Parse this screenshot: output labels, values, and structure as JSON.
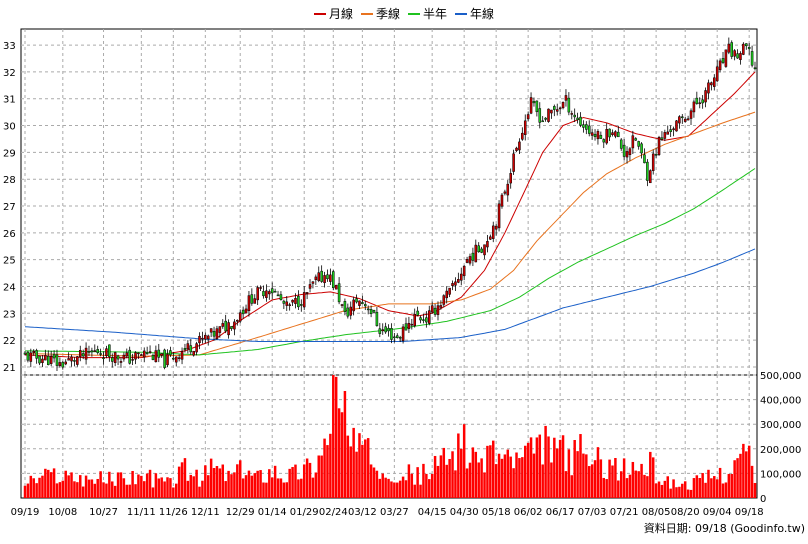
{
  "chart_data": [
    {
      "type": "candlestick",
      "panel": "price",
      "legend": [
        {
          "name": "月線",
          "color": "#cc0000"
        },
        {
          "name": "季線",
          "color": "#e8731f"
        },
        {
          "name": "半年",
          "color": "#1fc21f"
        },
        {
          "name": "年線",
          "color": "#1a5fc8"
        }
      ],
      "ylim": [
        20.7,
        33.6
      ],
      "yticks": [
        21,
        22,
        23,
        24,
        25,
        26,
        27,
        28,
        29,
        30,
        31,
        32,
        33
      ],
      "grid": true,
      "up_color": "#cc0000",
      "down_color": "#1ecb1e",
      "close_anchors": [
        [
          0,
          21.4
        ],
        [
          8,
          21.3
        ],
        [
          12,
          21.1
        ],
        [
          18,
          21.35
        ],
        [
          25,
          21.6
        ],
        [
          30,
          21.45
        ],
        [
          36,
          21.3
        ],
        [
          42,
          21.55
        ],
        [
          48,
          21.2
        ],
        [
          54,
          21.6
        ],
        [
          60,
          21.95
        ],
        [
          66,
          22.3
        ],
        [
          72,
          22.75
        ],
        [
          78,
          23.6
        ],
        [
          84,
          24.0
        ],
        [
          90,
          23.2
        ],
        [
          96,
          23.6
        ],
        [
          100,
          24.2
        ],
        [
          104,
          24.5
        ],
        [
          107,
          23.9
        ],
        [
          110,
          22.9
        ],
        [
          114,
          23.5
        ],
        [
          118,
          23.3
        ],
        [
          122,
          22.4
        ],
        [
          128,
          22.1
        ],
        [
          134,
          22.9
        ],
        [
          138,
          22.8
        ],
        [
          142,
          23.3
        ],
        [
          147,
          23.9
        ],
        [
          152,
          25.0
        ],
        [
          158,
          25.6
        ],
        [
          162,
          26.5
        ],
        [
          166,
          28.0
        ],
        [
          170,
          29.6
        ],
        [
          174,
          30.8
        ],
        [
          178,
          30.2
        ],
        [
          182,
          30.6
        ],
        [
          186,
          30.9
        ],
        [
          190,
          30.2
        ],
        [
          194,
          29.8
        ],
        [
          198,
          29.5
        ],
        [
          202,
          29.9
        ],
        [
          206,
          29.0
        ],
        [
          210,
          29.5
        ],
        [
          214,
          28.2
        ],
        [
          218,
          29.4
        ],
        [
          222,
          29.9
        ],
        [
          226,
          30.2
        ],
        [
          230,
          30.7
        ],
        [
          234,
          31.2
        ],
        [
          238,
          32.0
        ],
        [
          242,
          32.8
        ],
        [
          245,
          32.6
        ],
        [
          248,
          32.9
        ],
        [
          251,
          32.1
        ]
      ],
      "moving_averages": {
        "月線": [
          [
            0,
            21.45
          ],
          [
            20,
            21.35
          ],
          [
            40,
            21.35
          ],
          [
            55,
            21.6
          ],
          [
            65,
            22.0
          ],
          [
            75,
            22.8
          ],
          [
            85,
            23.5
          ],
          [
            95,
            23.7
          ],
          [
            105,
            23.8
          ],
          [
            115,
            23.55
          ],
          [
            125,
            23.1
          ],
          [
            135,
            22.9
          ],
          [
            140,
            23.0
          ],
          [
            150,
            23.6
          ],
          [
            158,
            24.6
          ],
          [
            165,
            26.0
          ],
          [
            172,
            27.6
          ],
          [
            178,
            29.0
          ],
          [
            185,
            30.0
          ],
          [
            192,
            30.3
          ],
          [
            200,
            30.1
          ],
          [
            210,
            29.7
          ],
          [
            220,
            29.45
          ],
          [
            228,
            29.6
          ],
          [
            236,
            30.4
          ],
          [
            244,
            31.2
          ],
          [
            251,
            32.0
          ]
        ],
        "季線": [
          [
            0,
            21.5
          ],
          [
            40,
            21.4
          ],
          [
            60,
            21.45
          ],
          [
            80,
            22.1
          ],
          [
            95,
            22.6
          ],
          [
            110,
            23.1
          ],
          [
            125,
            23.35
          ],
          [
            140,
            23.35
          ],
          [
            150,
            23.5
          ],
          [
            160,
            23.9
          ],
          [
            168,
            24.6
          ],
          [
            176,
            25.7
          ],
          [
            184,
            26.6
          ],
          [
            192,
            27.5
          ],
          [
            200,
            28.2
          ],
          [
            210,
            28.8
          ],
          [
            220,
            29.3
          ],
          [
            230,
            29.7
          ],
          [
            240,
            30.1
          ],
          [
            251,
            30.5
          ]
        ],
        "半年": [
          [
            0,
            21.6
          ],
          [
            40,
            21.55
          ],
          [
            60,
            21.45
          ],
          [
            80,
            21.65
          ],
          [
            95,
            21.95
          ],
          [
            110,
            22.2
          ],
          [
            130,
            22.45
          ],
          [
            145,
            22.7
          ],
          [
            160,
            23.1
          ],
          [
            170,
            23.6
          ],
          [
            180,
            24.3
          ],
          [
            190,
            24.9
          ],
          [
            200,
            25.4
          ],
          [
            210,
            25.9
          ],
          [
            220,
            26.35
          ],
          [
            230,
            26.9
          ],
          [
            240,
            27.6
          ],
          [
            251,
            28.4
          ]
        ],
        "年線": [
          [
            0,
            22.5
          ],
          [
            30,
            22.3
          ],
          [
            60,
            22.05
          ],
          [
            80,
            21.95
          ],
          [
            110,
            21.95
          ],
          [
            130,
            21.95
          ],
          [
            150,
            22.1
          ],
          [
            165,
            22.4
          ],
          [
            175,
            22.8
          ],
          [
            185,
            23.2
          ],
          [
            200,
            23.6
          ],
          [
            215,
            24.0
          ],
          [
            230,
            24.5
          ],
          [
            240,
            24.9
          ],
          [
            251,
            25.4
          ]
        ]
      }
    },
    {
      "type": "bar",
      "panel": "volume",
      "ylim": [
        0,
        500000
      ],
      "yticks": [
        0,
        100000,
        200000,
        300000,
        400000,
        500000
      ],
      "ytick_labels": [
        "0",
        "100,000",
        "200,000",
        "300,000",
        "400,000",
        "500,000"
      ],
      "bar_color": "#ff0000",
      "volume_anchors": [
        [
          0,
          60000
        ],
        [
          10,
          95000
        ],
        [
          20,
          80000
        ],
        [
          30,
          75000
        ],
        [
          40,
          90000
        ],
        [
          50,
          60000
        ],
        [
          55,
          120000
        ],
        [
          60,
          70000
        ],
        [
          65,
          130000
        ],
        [
          70,
          90000
        ],
        [
          75,
          110000
        ],
        [
          80,
          85000
        ],
        [
          85,
          120000
        ],
        [
          90,
          90000
        ],
        [
          95,
          110000
        ],
        [
          100,
          140000
        ],
        [
          104,
          230000
        ],
        [
          106,
          520000
        ],
        [
          108,
          330000
        ],
        [
          110,
          260000
        ],
        [
          112,
          200000
        ],
        [
          116,
          190000
        ],
        [
          120,
          150000
        ],
        [
          125,
          120000
        ],
        [
          130,
          100000
        ],
        [
          135,
          90000
        ],
        [
          140,
          110000
        ],
        [
          145,
          170000
        ],
        [
          150,
          220000
        ],
        [
          155,
          130000
        ],
        [
          160,
          200000
        ],
        [
          165,
          160000
        ],
        [
          170,
          150000
        ],
        [
          175,
          180000
        ],
        [
          180,
          220000
        ],
        [
          185,
          180000
        ],
        [
          190,
          160000
        ],
        [
          195,
          150000
        ],
        [
          200,
          140000
        ],
        [
          205,
          110000
        ],
        [
          210,
          120000
        ],
        [
          215,
          130000
        ],
        [
          218,
          85000
        ],
        [
          222,
          60000
        ],
        [
          228,
          55000
        ],
        [
          235,
          80000
        ],
        [
          242,
          110000
        ],
        [
          248,
          180000
        ],
        [
          251,
          90000
        ]
      ],
      "volume_spikes": [
        [
          106,
          500000
        ],
        [
          110,
          435000
        ],
        [
          113,
          285000
        ],
        [
          151,
          300000
        ],
        [
          182,
          245000
        ],
        [
          191,
          260000
        ],
        [
          247,
          220000
        ]
      ]
    }
  ],
  "x_ticks": [
    {
      "idx": 0,
      "label": "09/19"
    },
    {
      "idx": 13,
      "label": "10/08"
    },
    {
      "idx": 27,
      "label": "10/27"
    },
    {
      "idx": 40,
      "label": "11/11"
    },
    {
      "idx": 51,
      "label": "11/26"
    },
    {
      "idx": 62,
      "label": "12/11"
    },
    {
      "idx": 74,
      "label": "12/29"
    },
    {
      "idx": 85,
      "label": "01/14"
    },
    {
      "idx": 96,
      "label": "01/29"
    },
    {
      "idx": 106,
      "label": "02/24"
    },
    {
      "idx": 116,
      "label": "03/12"
    },
    {
      "idx": 127,
      "label": "03/27"
    },
    {
      "idx": 140,
      "label": "04/15"
    },
    {
      "idx": 151,
      "label": "04/30"
    },
    {
      "idx": 162,
      "label": "05/18"
    },
    {
      "idx": 173,
      "label": "06/02"
    },
    {
      "idx": 184,
      "label": "06/17"
    },
    {
      "idx": 195,
      "label": "07/03"
    },
    {
      "idx": 206,
      "label": "07/21"
    },
    {
      "idx": 217,
      "label": "08/05"
    },
    {
      "idx": 227,
      "label": "08/20"
    },
    {
      "idx": 238,
      "label": "09/04"
    },
    {
      "idx": 249,
      "label": "09/18"
    }
  ],
  "credit": "資料日期: 09/18 (Goodinfo.tw)"
}
